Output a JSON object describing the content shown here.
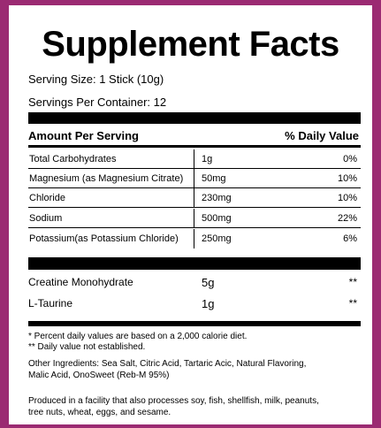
{
  "title": "Supplement Facts",
  "serving_size": "Serving Size: 1 Stick (10g)",
  "servings_per_container": "Servings Per Container: 12",
  "header": {
    "left": "Amount Per Serving",
    "right": "% Daily Value"
  },
  "nutrients": [
    {
      "name": "Total Carbohydrates",
      "amount": "1g",
      "dv": "0%"
    },
    {
      "name": "Magnesium (as Magnesium Citrate)",
      "amount": "50mg",
      "dv": "10%"
    },
    {
      "name": "Chloride",
      "amount": "230mg",
      "dv": "10%"
    },
    {
      "name": "Sodium",
      "amount": "500mg",
      "dv": "22%"
    },
    {
      "name": "Potassium(as Potassium Chloride)",
      "amount": "250mg",
      "dv": "6%"
    }
  ],
  "other": [
    {
      "name": "Creatine Monohydrate",
      "amount": "5g",
      "dv": "**"
    },
    {
      "name": "L-Taurine",
      "amount": "1g",
      "dv": "**"
    }
  ],
  "footnote1": "* Percent daily values are based on a 2,000 calorie diet.",
  "footnote2": "** Daily value not established.",
  "ingredients_line1": "Other Ingredients: Sea Salt, Citric Acid, Tartaric Acic, Natural Flavoring,",
  "ingredients_line2": "Malic Acid, OnoSweet (Reb-M 95%)",
  "facility_line1": "Produced in a facility that also processes soy, fish, shellfish, milk, peanuts,",
  "facility_line2": "tree nuts, wheat, eggs, and sesame.",
  "colors": {
    "border": "#9b2a72",
    "panel": "#ffffff",
    "ink": "#000000"
  }
}
